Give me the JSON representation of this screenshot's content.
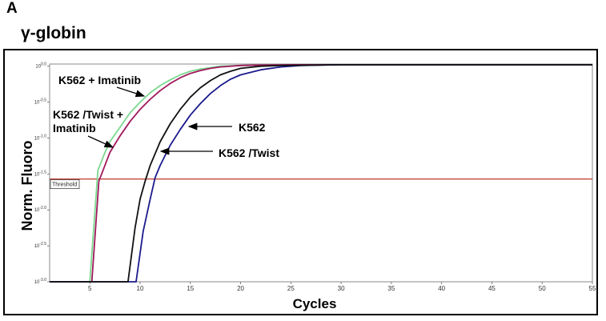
{
  "panel_label": "A",
  "gene_title": "γ-globin",
  "chart_data": {
    "type": "line",
    "xlabel": "Cycles",
    "ylabel": "Norm. Fluoro",
    "xlim": [
      1,
      55
    ],
    "x_ticks": [
      5,
      10,
      15,
      20,
      25,
      30,
      35,
      40,
      45,
      50,
      55
    ],
    "y_tick_exponents": [
      "0.0",
      "-0.5",
      "-1.0",
      "-1.5",
      "-2.0",
      "-2.5",
      "-3.0"
    ],
    "y_tick_base": "10",
    "ylim": [
      -3.0,
      0.03
    ],
    "y_scale": "log10",
    "threshold": {
      "label": "Threshold",
      "value": -1.57,
      "color": "#c0392b"
    },
    "series": [
      {
        "name": "K562 + Imatinib",
        "color": "#7bd88f",
        "x": [
          1,
          5,
          5.8,
          6.5,
          7,
          8,
          9,
          10,
          11,
          12,
          13,
          14,
          15,
          16,
          17,
          18,
          20,
          22,
          25,
          30,
          55
        ],
        "y": [
          -3.0,
          -3.0,
          -1.45,
          -1.2,
          -1.05,
          -0.85,
          -0.65,
          -0.5,
          -0.37,
          -0.27,
          -0.19,
          -0.12,
          -0.07,
          -0.04,
          -0.02,
          0.0,
          0.01,
          0.015,
          0.02,
          0.02,
          0.02
        ]
      },
      {
        "name": "K562 /Twist + Imatinib",
        "color": "#a0185c",
        "x": [
          1,
          5.2,
          5.9,
          6.5,
          7,
          8,
          9,
          10,
          11,
          12,
          13,
          14,
          15,
          16,
          17,
          18,
          20,
          22,
          25,
          30,
          55
        ],
        "y": [
          -3.0,
          -3.0,
          -1.6,
          -1.38,
          -1.2,
          -0.97,
          -0.77,
          -0.6,
          -0.46,
          -0.34,
          -0.24,
          -0.16,
          -0.1,
          -0.06,
          -0.03,
          -0.01,
          0.01,
          0.015,
          0.02,
          0.02,
          0.02
        ]
      },
      {
        "name": "K562",
        "color": "#1a1a8c",
        "x": [
          1,
          9.6,
          10.3,
          11,
          11.5,
          12,
          13,
          14,
          15,
          16,
          17,
          18,
          19,
          20,
          22,
          24,
          26,
          30,
          55
        ],
        "y": [
          -3.0,
          -3.0,
          -2.3,
          -1.85,
          -1.55,
          -1.38,
          -1.1,
          -0.88,
          -0.68,
          -0.52,
          -0.38,
          -0.27,
          -0.18,
          -0.12,
          -0.05,
          -0.01,
          0.01,
          0.02,
          0.02
        ]
      },
      {
        "name": "K562 /Twist",
        "color": "#111111",
        "x": [
          1,
          8.8,
          9.5,
          10,
          10.5,
          11,
          12,
          13,
          14,
          15,
          16,
          17,
          18,
          19,
          20,
          22,
          24,
          30,
          55
        ],
        "y": [
          -3.0,
          -3.0,
          -2.25,
          -1.85,
          -1.6,
          -1.38,
          -1.05,
          -0.8,
          -0.6,
          -0.43,
          -0.3,
          -0.2,
          -0.12,
          -0.07,
          -0.03,
          0.0,
          0.01,
          0.02,
          0.02
        ]
      }
    ],
    "annotations": [
      {
        "text": "K562 + Imatinib",
        "series": 0
      },
      {
        "text": "K562 /Twist +",
        "series": 1
      },
      {
        "text": "Imatinib",
        "series": 1
      },
      {
        "text": "K562",
        "series": 2
      },
      {
        "text": "K562 /Twist",
        "series": 3
      }
    ]
  }
}
